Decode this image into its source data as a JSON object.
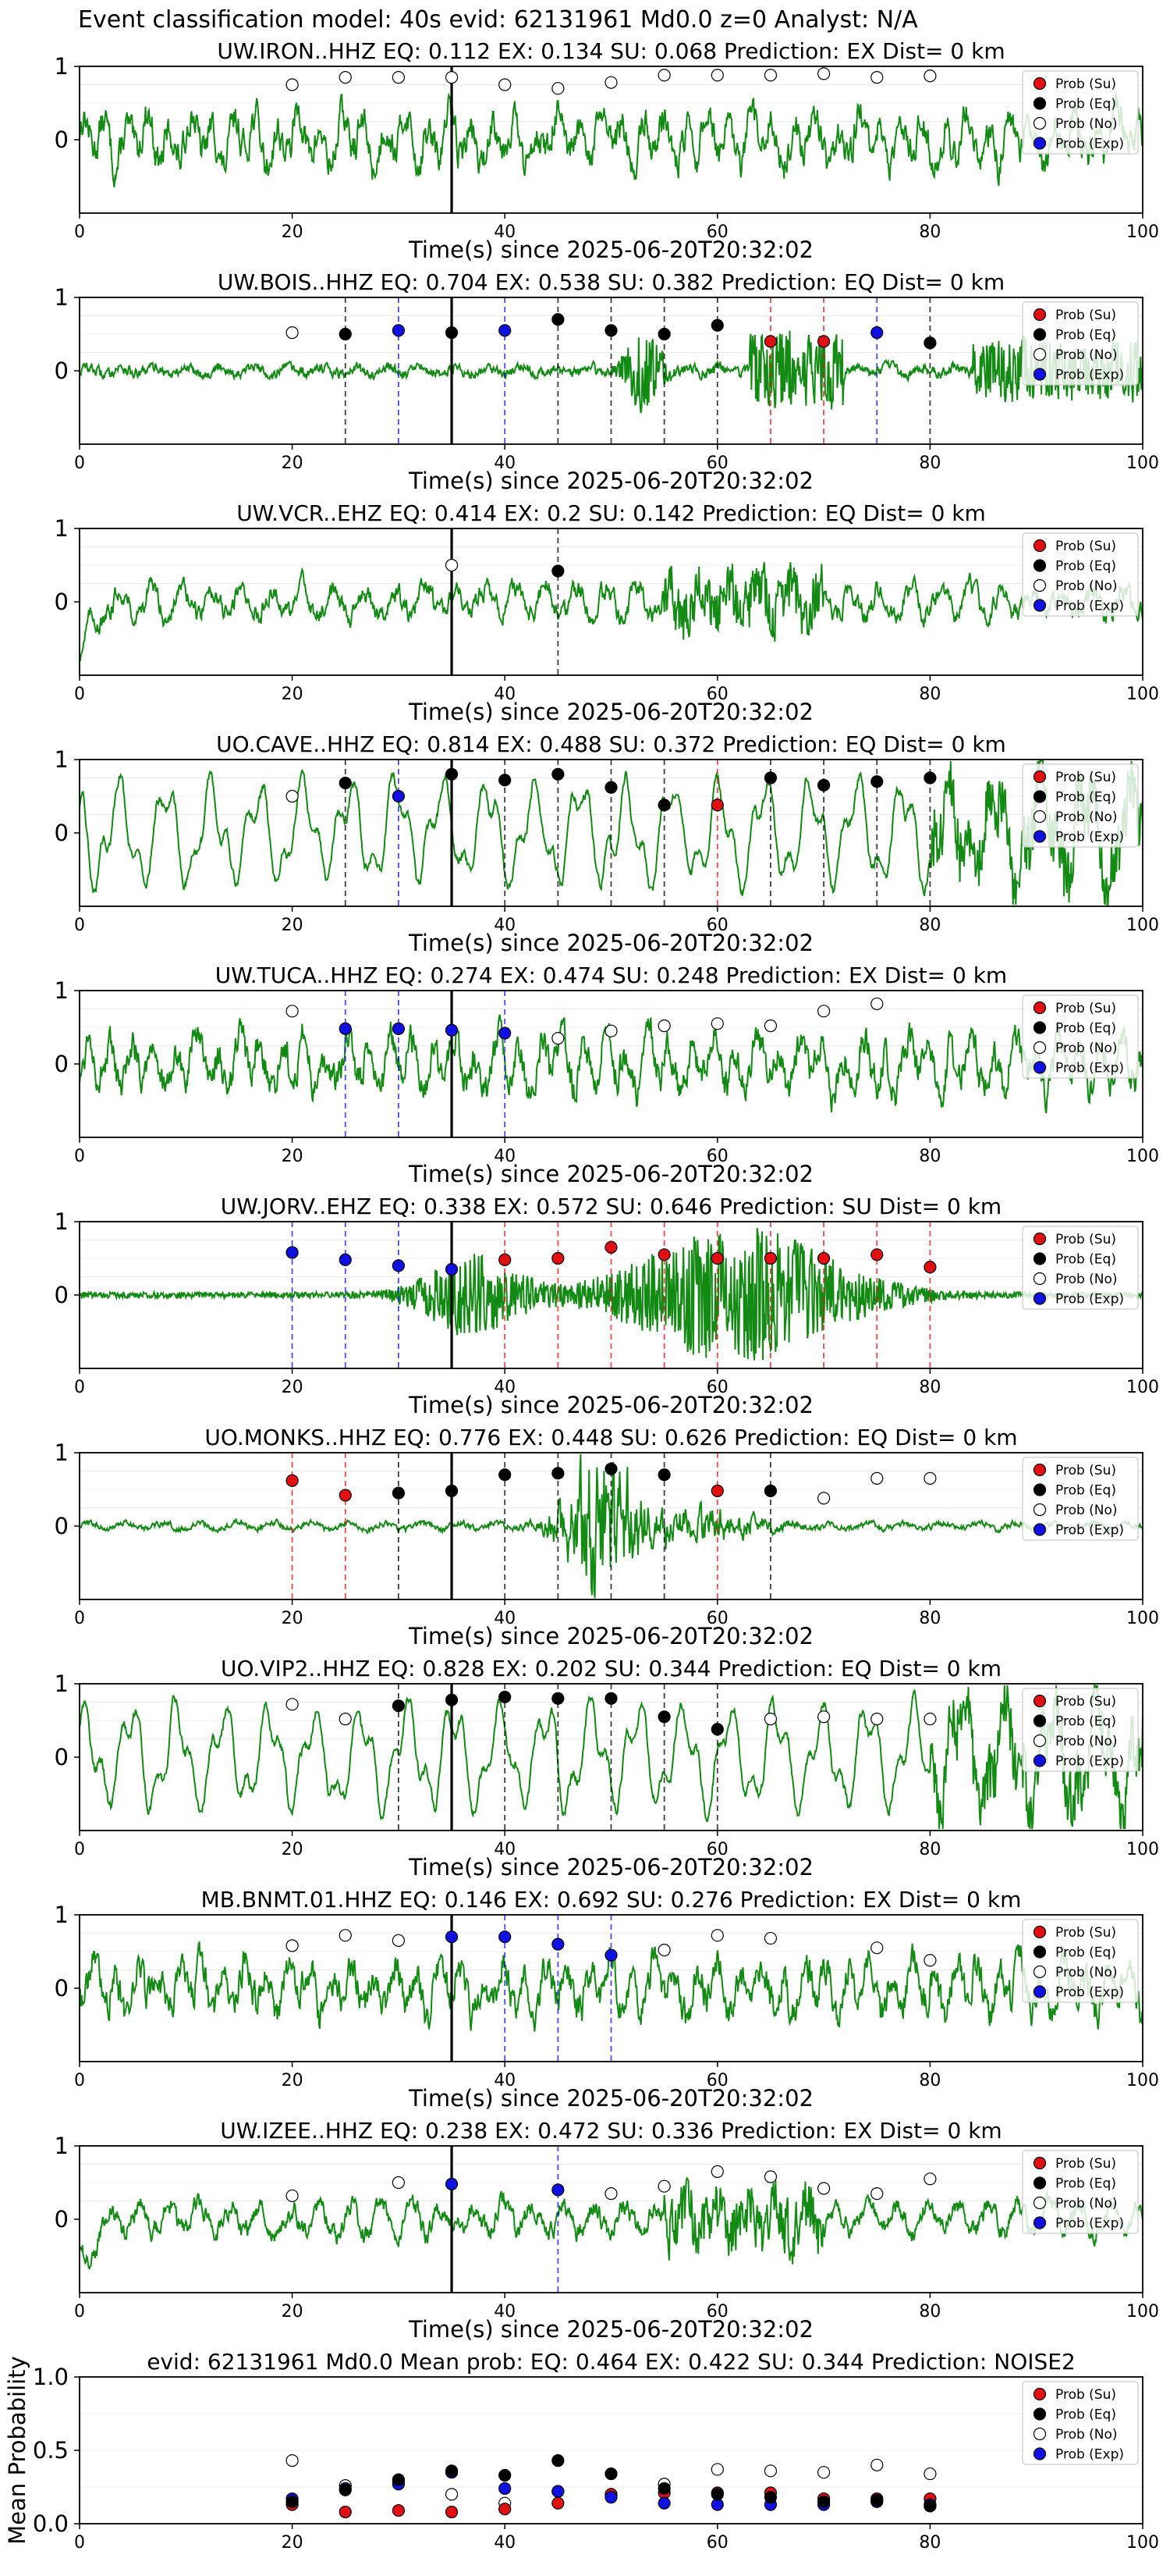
{
  "figure": {
    "suptitle": "Event classification model: 40s evid: 62131961 Md0.0 z=0 Analyst: N/A"
  },
  "legend_labels": [
    "Prob (Su)",
    "Prob (Eq)",
    "Prob (No)",
    "Prob (Exp)"
  ],
  "colors": {
    "su": "#e01010",
    "eq": "#000000",
    "no": "#ffffff",
    "exp": "#1010e0",
    "trace": "#138a13",
    "pick": "#000000"
  },
  "chart_data": [
    {
      "type": "scatter",
      "title": "UW.IRON..HHZ   EQ: 0.112  EX: 0.134  SU: 0.068   Prediction: EX    Dist= 0 km",
      "xlabel": "Time(s) since 2025-06-20T20:32:02",
      "ylabel": "",
      "xlim": [
        0,
        100
      ],
      "ylim": [
        -1,
        1
      ],
      "xticks": [
        "0",
        "20",
        "40",
        "60",
        "80",
        "100"
      ],
      "yticks": [
        "0",
        "1"
      ],
      "p_pick": 35,
      "trace_style": "broadband-noise",
      "series": [
        {
          "name": "Prob (No)",
          "x": [
            20,
            25,
            30,
            35,
            40,
            45,
            50,
            55,
            60,
            65,
            70,
            75,
            80
          ],
          "y": [
            0.75,
            0.85,
            0.85,
            0.85,
            0.75,
            0.7,
            0.78,
            0.88,
            0.88,
            0.88,
            0.9,
            0.85,
            0.87
          ]
        }
      ],
      "vlines": []
    },
    {
      "type": "scatter",
      "title": "UW.BOIS..HHZ   EQ: 0.704  EX: 0.538  SU: 0.382   Prediction: EQ    Dist= 0 km",
      "xlabel": "Time(s) since 2025-06-20T20:32:02",
      "ylabel": "",
      "xlim": [
        0,
        100
      ],
      "ylim": [
        -1,
        1
      ],
      "xticks": [
        "0",
        "20",
        "40",
        "60",
        "80",
        "100"
      ],
      "yticks": [
        "0",
        "1"
      ],
      "p_pick": 35,
      "trace_style": "small-noise",
      "series": [
        {
          "name": "Prob (No)",
          "x": [
            20
          ],
          "y": [
            0.52
          ]
        },
        {
          "name": "Prob (Eq)",
          "x": [
            25,
            35,
            45,
            50,
            55,
            60,
            80
          ],
          "y": [
            0.5,
            0.52,
            0.7,
            0.55,
            0.5,
            0.62,
            0.38
          ]
        },
        {
          "name": "Prob (Exp)",
          "x": [
            30,
            40,
            75
          ],
          "y": [
            0.55,
            0.55,
            0.52
          ]
        },
        {
          "name": "Prob (Su)",
          "x": [
            65,
            70
          ],
          "y": [
            0.4,
            0.4
          ]
        }
      ],
      "vlines": [
        {
          "x": 25,
          "kind": "eq"
        },
        {
          "x": 30,
          "kind": "exp"
        },
        {
          "x": 40,
          "kind": "exp"
        },
        {
          "x": 45,
          "kind": "eq"
        },
        {
          "x": 50,
          "kind": "eq"
        },
        {
          "x": 55,
          "kind": "eq"
        },
        {
          "x": 60,
          "kind": "eq"
        },
        {
          "x": 65,
          "kind": "su"
        },
        {
          "x": 70,
          "kind": "su"
        },
        {
          "x": 75,
          "kind": "exp"
        },
        {
          "x": 80,
          "kind": "eq"
        }
      ]
    },
    {
      "type": "scatter",
      "title": "UW.VCR..EHZ   EQ: 0.414  EX: 0.2  SU: 0.142   Prediction: EQ    Dist= 0 km",
      "xlabel": "Time(s) since 2025-06-20T20:32:02",
      "ylabel": "",
      "xlim": [
        0,
        100
      ],
      "ylim": [
        -1,
        1
      ],
      "xticks": [
        "0",
        "20",
        "40",
        "60",
        "80",
        "100"
      ],
      "yticks": [
        "0",
        "1"
      ],
      "p_pick": 35,
      "trace_style": "medium-noise",
      "series": [
        {
          "name": "Prob (No)",
          "x": [
            35
          ],
          "y": [
            0.5
          ]
        },
        {
          "name": "Prob (Eq)",
          "x": [
            45
          ],
          "y": [
            0.42
          ]
        }
      ],
      "vlines": [
        {
          "x": 45,
          "kind": "eq"
        }
      ]
    },
    {
      "type": "scatter",
      "title": "UO.CAVE..HHZ   EQ: 0.814  EX: 0.488  SU: 0.372   Prediction: EQ    Dist= 0 km",
      "xlabel": "Time(s) since 2025-06-20T20:32:02",
      "ylabel": "",
      "xlim": [
        0,
        100
      ],
      "ylim": [
        -1,
        1
      ],
      "xticks": [
        "0",
        "20",
        "40",
        "60",
        "80",
        "100"
      ],
      "yticks": [
        "0",
        "1"
      ],
      "p_pick": 35,
      "trace_style": "long-period",
      "series": [
        {
          "name": "Prob (No)",
          "x": [
            20
          ],
          "y": [
            0.5
          ]
        },
        {
          "name": "Prob (Eq)",
          "x": [
            25,
            35,
            40,
            45,
            50,
            55,
            65,
            70,
            75,
            80
          ],
          "y": [
            0.68,
            0.8,
            0.72,
            0.8,
            0.62,
            0.38,
            0.75,
            0.65,
            0.7,
            0.75
          ]
        },
        {
          "name": "Prob (Exp)",
          "x": [
            30
          ],
          "y": [
            0.5
          ]
        },
        {
          "name": "Prob (Su)",
          "x": [
            60
          ],
          "y": [
            0.38
          ]
        }
      ],
      "vlines": [
        {
          "x": 25,
          "kind": "eq"
        },
        {
          "x": 30,
          "kind": "exp"
        },
        {
          "x": 40,
          "kind": "eq"
        },
        {
          "x": 45,
          "kind": "eq"
        },
        {
          "x": 50,
          "kind": "eq"
        },
        {
          "x": 55,
          "kind": "eq"
        },
        {
          "x": 60,
          "kind": "su"
        },
        {
          "x": 65,
          "kind": "eq"
        },
        {
          "x": 70,
          "kind": "eq"
        },
        {
          "x": 75,
          "kind": "eq"
        },
        {
          "x": 80,
          "kind": "eq"
        }
      ]
    },
    {
      "type": "scatter",
      "title": "UW.TUCA..HHZ   EQ: 0.274  EX: 0.474  SU: 0.248   Prediction: EX    Dist= 0 km",
      "xlabel": "Time(s) since 2025-06-20T20:32:02",
      "ylabel": "",
      "xlim": [
        0,
        100
      ],
      "ylim": [
        -1,
        1
      ],
      "xticks": [
        "0",
        "20",
        "40",
        "60",
        "80",
        "100"
      ],
      "yticks": [
        "0",
        "1"
      ],
      "p_pick": 35,
      "trace_style": "broadband-noise",
      "series": [
        {
          "name": "Prob (No)",
          "x": [
            20,
            45,
            50,
            55,
            60,
            65,
            70,
            75
          ],
          "y": [
            0.72,
            0.35,
            0.45,
            0.52,
            0.55,
            0.52,
            0.72,
            0.82
          ]
        },
        {
          "name": "Prob (Exp)",
          "x": [
            25,
            30,
            35,
            40
          ],
          "y": [
            0.48,
            0.48,
            0.46,
            0.42
          ]
        }
      ],
      "vlines": [
        {
          "x": 25,
          "kind": "exp"
        },
        {
          "x": 30,
          "kind": "exp"
        },
        {
          "x": 40,
          "kind": "exp"
        }
      ]
    },
    {
      "type": "scatter",
      "title": "UW.JORV..EHZ   EQ: 0.338  EX: 0.572  SU: 0.646   Prediction: SU    Dist= 0 km",
      "xlabel": "Time(s) since 2025-06-20T20:32:02",
      "ylabel": "",
      "xlim": [
        0,
        100
      ],
      "ylim": [
        -1,
        1
      ],
      "xticks": [
        "0",
        "20",
        "40",
        "60",
        "80",
        "100"
      ],
      "yticks": [
        "0",
        "1"
      ],
      "p_pick": 35,
      "trace_style": "emergent-burst",
      "series": [
        {
          "name": "Prob (Exp)",
          "x": [
            20,
            25,
            30,
            35
          ],
          "y": [
            0.58,
            0.48,
            0.4,
            0.35
          ]
        },
        {
          "name": "Prob (Su)",
          "x": [
            40,
            45,
            50,
            55,
            60,
            65,
            70,
            75,
            80
          ],
          "y": [
            0.48,
            0.5,
            0.65,
            0.55,
            0.5,
            0.5,
            0.5,
            0.55,
            0.38
          ]
        }
      ],
      "vlines": [
        {
          "x": 20,
          "kind": "exp"
        },
        {
          "x": 25,
          "kind": "exp"
        },
        {
          "x": 30,
          "kind": "exp"
        },
        {
          "x": 40,
          "kind": "su"
        },
        {
          "x": 45,
          "kind": "su"
        },
        {
          "x": 50,
          "kind": "su"
        },
        {
          "x": 55,
          "kind": "su"
        },
        {
          "x": 60,
          "kind": "su"
        },
        {
          "x": 65,
          "kind": "su"
        },
        {
          "x": 70,
          "kind": "su"
        },
        {
          "x": 75,
          "kind": "su"
        },
        {
          "x": 80,
          "kind": "su"
        }
      ]
    },
    {
      "type": "scatter",
      "title": "UO.MONKS..HHZ   EQ: 0.776  EX: 0.448  SU: 0.626   Prediction: EQ    Dist= 0 km",
      "xlabel": "Time(s) since 2025-06-20T20:32:02",
      "ylabel": "",
      "xlim": [
        0,
        100
      ],
      "ylim": [
        -1,
        1
      ],
      "xticks": [
        "0",
        "20",
        "40",
        "60",
        "80",
        "100"
      ],
      "yticks": [
        "0",
        "1"
      ],
      "p_pick": 35,
      "trace_style": "impulsive-event",
      "series": [
        {
          "name": "Prob (Su)",
          "x": [
            20,
            25,
            60
          ],
          "y": [
            0.62,
            0.42,
            0.48
          ]
        },
        {
          "name": "Prob (Eq)",
          "x": [
            30,
            35,
            40,
            45,
            50,
            55,
            65
          ],
          "y": [
            0.45,
            0.48,
            0.7,
            0.72,
            0.78,
            0.7,
            0.48
          ]
        },
        {
          "name": "Prob (No)",
          "x": [
            70,
            75,
            80
          ],
          "y": [
            0.38,
            0.65,
            0.65
          ]
        }
      ],
      "vlines": [
        {
          "x": 20,
          "kind": "su"
        },
        {
          "x": 25,
          "kind": "su"
        },
        {
          "x": 30,
          "kind": "eq"
        },
        {
          "x": 40,
          "kind": "eq"
        },
        {
          "x": 45,
          "kind": "eq"
        },
        {
          "x": 50,
          "kind": "eq"
        },
        {
          "x": 55,
          "kind": "eq"
        },
        {
          "x": 60,
          "kind": "su"
        },
        {
          "x": 65,
          "kind": "eq"
        }
      ]
    },
    {
      "type": "scatter",
      "title": "UO.VIP2..HHZ   EQ: 0.828  EX: 0.202  SU: 0.344   Prediction: EQ    Dist= 0 km",
      "xlabel": "Time(s) since 2025-06-20T20:32:02",
      "ylabel": "",
      "xlim": [
        0,
        100
      ],
      "ylim": [
        -1,
        1
      ],
      "xticks": [
        "0",
        "20",
        "40",
        "60",
        "80",
        "100"
      ],
      "yticks": [
        "0",
        "1"
      ],
      "p_pick": 35,
      "trace_style": "long-period",
      "series": [
        {
          "name": "Prob (No)",
          "x": [
            20,
            25,
            65,
            70,
            75,
            80
          ],
          "y": [
            0.72,
            0.52,
            0.52,
            0.55,
            0.52,
            0.52
          ]
        },
        {
          "name": "Prob (Eq)",
          "x": [
            30,
            35,
            40,
            45,
            50,
            55,
            60
          ],
          "y": [
            0.7,
            0.78,
            0.82,
            0.8,
            0.8,
            0.55,
            0.38
          ]
        }
      ],
      "vlines": [
        {
          "x": 30,
          "kind": "eq"
        },
        {
          "x": 40,
          "kind": "eq"
        },
        {
          "x": 45,
          "kind": "eq"
        },
        {
          "x": 50,
          "kind": "eq"
        },
        {
          "x": 55,
          "kind": "eq"
        },
        {
          "x": 60,
          "kind": "eq"
        }
      ]
    },
    {
      "type": "scatter",
      "title": "MB.BNMT.01.HHZ   EQ: 0.146  EX: 0.692  SU: 0.276   Prediction: EX    Dist= 0 km",
      "xlabel": "Time(s) since 2025-06-20T20:32:02",
      "ylabel": "",
      "xlim": [
        0,
        100
      ],
      "ylim": [
        -1,
        1
      ],
      "xticks": [
        "0",
        "20",
        "40",
        "60",
        "80",
        "100"
      ],
      "yticks": [
        "0",
        "1"
      ],
      "p_pick": 35,
      "trace_style": "broadband-noise",
      "series": [
        {
          "name": "Prob (No)",
          "x": [
            20,
            25,
            30,
            55,
            60,
            65,
            75,
            80
          ],
          "y": [
            0.58,
            0.72,
            0.65,
            0.52,
            0.72,
            0.68,
            0.55,
            0.38
          ]
        },
        {
          "name": "Prob (Exp)",
          "x": [
            35,
            40,
            45,
            50
          ],
          "y": [
            0.7,
            0.7,
            0.6,
            0.45
          ]
        }
      ],
      "vlines": [
        {
          "x": 40,
          "kind": "exp"
        },
        {
          "x": 45,
          "kind": "exp"
        },
        {
          "x": 50,
          "kind": "exp"
        }
      ]
    },
    {
      "type": "scatter",
      "title": "UW.IZEE..HHZ   EQ: 0.238  EX: 0.472  SU: 0.336   Prediction: EX    Dist= 0 km",
      "xlabel": "Time(s) since 2025-06-20T20:32:02",
      "ylabel": "",
      "xlim": [
        0,
        100
      ],
      "ylim": [
        -1,
        1
      ],
      "xticks": [
        "0",
        "20",
        "40",
        "60",
        "80",
        "100"
      ],
      "yticks": [
        "0",
        "1"
      ],
      "p_pick": 35,
      "trace_style": "medium-noise",
      "series": [
        {
          "name": "Prob (No)",
          "x": [
            20,
            30,
            50,
            55,
            60,
            65,
            70,
            75,
            80
          ],
          "y": [
            0.32,
            0.5,
            0.35,
            0.45,
            0.65,
            0.58,
            0.42,
            0.35,
            0.55
          ]
        },
        {
          "name": "Prob (Exp)",
          "x": [
            35,
            45
          ],
          "y": [
            0.48,
            0.4
          ]
        }
      ],
      "vlines": [
        {
          "x": 45,
          "kind": "exp"
        }
      ]
    },
    {
      "type": "scatter",
      "title": "evid: 62131961  Md0.0   Mean prob:   EQ: 0.464  EX: 0.422  SU: 0.344   Prediction: NOISE2",
      "xlabel": "",
      "ylabel": "Mean Probability",
      "xlim": [
        0,
        100
      ],
      "ylim": [
        0,
        1
      ],
      "xticks": [
        "0",
        "20",
        "40",
        "60",
        "80",
        "100"
      ],
      "yticks": [
        "0.0",
        "0.5",
        "1.0"
      ],
      "series": [
        {
          "name": "Prob (No)",
          "x": [
            20,
            25,
            30,
            35,
            40,
            45,
            50,
            55,
            60,
            65,
            70,
            75,
            80
          ],
          "y": [
            0.43,
            0.26,
            0.29,
            0.2,
            0.14,
            0.22,
            0.2,
            0.27,
            0.37,
            0.36,
            0.35,
            0.4,
            0.34
          ]
        },
        {
          "name": "Prob (Su)",
          "x": [
            20,
            25,
            30,
            35,
            40,
            45,
            50,
            55,
            60,
            65,
            70,
            75,
            80
          ],
          "y": [
            0.13,
            0.08,
            0.09,
            0.08,
            0.1,
            0.14,
            0.2,
            0.21,
            0.21,
            0.21,
            0.17,
            0.17,
            0.17
          ]
        },
        {
          "name": "Prob (Exp)",
          "x": [
            20,
            25,
            30,
            35,
            40,
            45,
            50,
            55,
            60,
            65,
            70,
            75,
            80
          ],
          "y": [
            0.17,
            0.24,
            0.27,
            0.35,
            0.24,
            0.22,
            0.18,
            0.14,
            0.13,
            0.13,
            0.13,
            0.15,
            0.13
          ]
        },
        {
          "name": "Prob (Eq)",
          "x": [
            20,
            25,
            30,
            35,
            40,
            45,
            50,
            55,
            60,
            65,
            70,
            75,
            80
          ],
          "y": [
            0.15,
            0.23,
            0.3,
            0.36,
            0.33,
            0.43,
            0.34,
            0.24,
            0.2,
            0.18,
            0.15,
            0.16,
            0.12
          ]
        }
      ],
      "vlines": []
    }
  ]
}
